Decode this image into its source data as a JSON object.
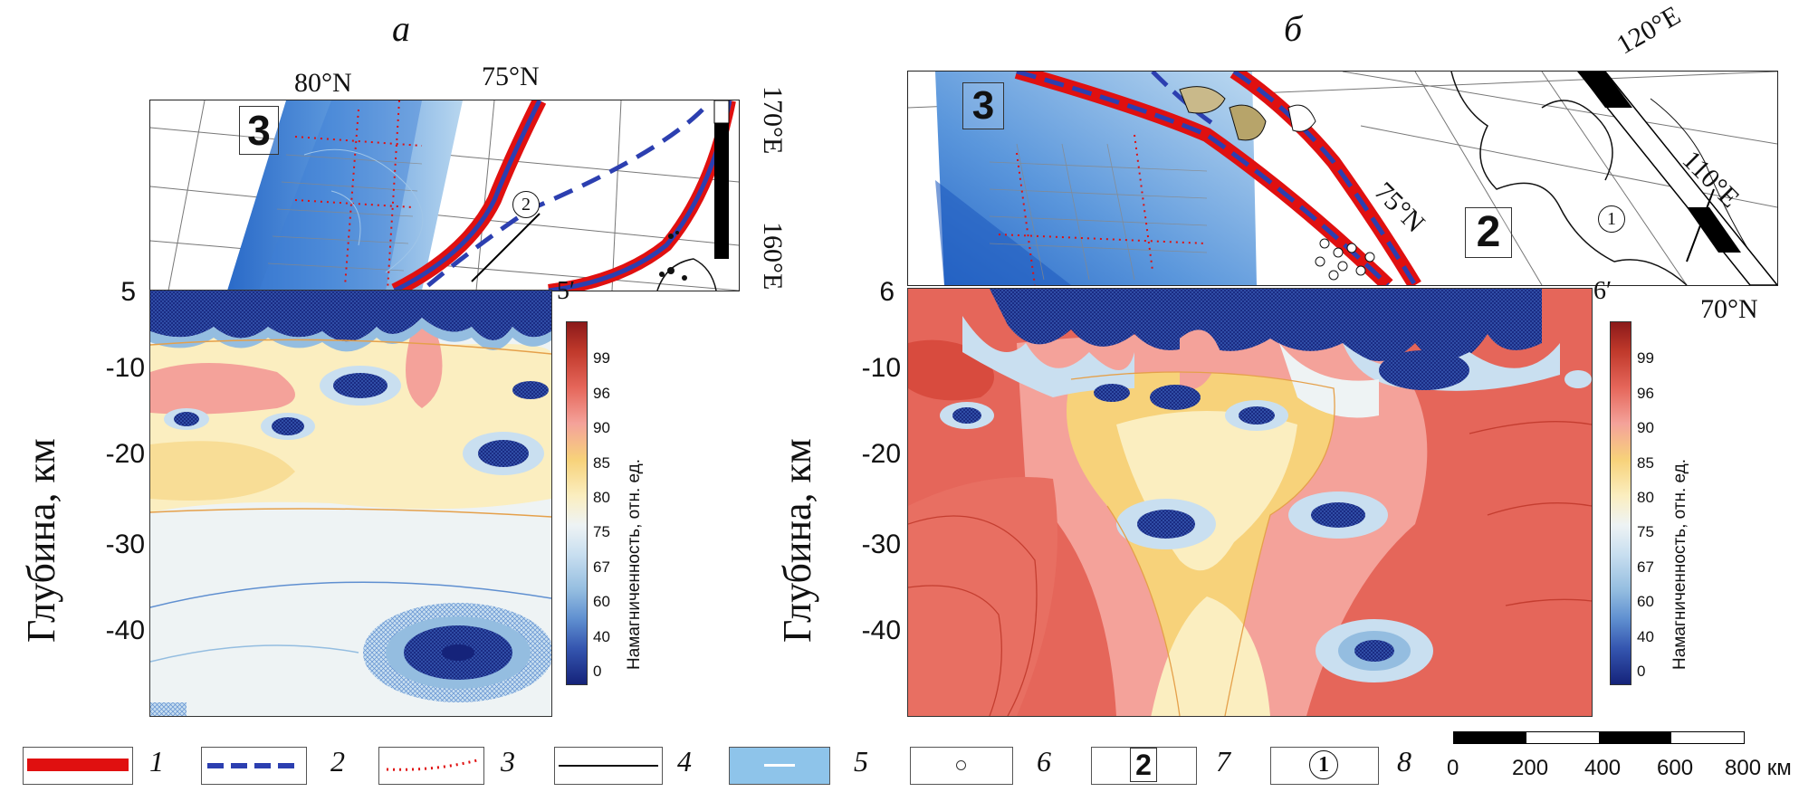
{
  "panels": {
    "a": {
      "letter": "а",
      "lat_labels": [
        "80°N",
        "75°N"
      ],
      "lon_labels": [
        "170°E",
        "160°E"
      ],
      "box_label": "3",
      "profile_label": "2",
      "section_start": "5",
      "section_end": "5′"
    },
    "b": {
      "letter": "б",
      "lat_labels": [
        "75°N",
        "70°N"
      ],
      "lon_labels": [
        "120°E",
        "110°E"
      ],
      "box_label_3": "3",
      "box_label_2": "2",
      "profile_label": "1",
      "section_start": "6",
      "section_end": "6′"
    }
  },
  "axes": {
    "ylabel": "Глубина, км",
    "yticks": [
      "-10",
      "-20",
      "-30",
      "-40"
    ]
  },
  "colorbar": {
    "title": "Намагниченность, отн. ед.",
    "ticks": [
      "99",
      "96",
      "90",
      "85",
      "80",
      "75",
      "67",
      "60",
      "40",
      "0"
    ],
    "colors": [
      "#8b1a1a",
      "#c0392b",
      "#e5665a",
      "#f4a29a",
      "#f7d27a",
      "#fbeec0",
      "#eef3f4",
      "#c9dff0",
      "#94bde0",
      "#5f8fd0",
      "#3556b0",
      "#15237a"
    ]
  },
  "legend": {
    "items": [
      {
        "num": "1",
        "symbol": "red-band"
      },
      {
        "num": "2",
        "symbol": "blue-dash"
      },
      {
        "num": "3",
        "symbol": "red-dots"
      },
      {
        "num": "4",
        "symbol": "black-line"
      },
      {
        "num": "5",
        "symbol": "blue-fill-white-line"
      },
      {
        "num": "6",
        "symbol": "small-circle"
      },
      {
        "num": "7",
        "symbol": "boxed-2"
      },
      {
        "num": "8",
        "symbol": "circled-1"
      }
    ],
    "box7_text": "2",
    "box8_text": "1",
    "scale_ticks": [
      "0",
      "200",
      "400",
      "600",
      "800 км"
    ]
  }
}
